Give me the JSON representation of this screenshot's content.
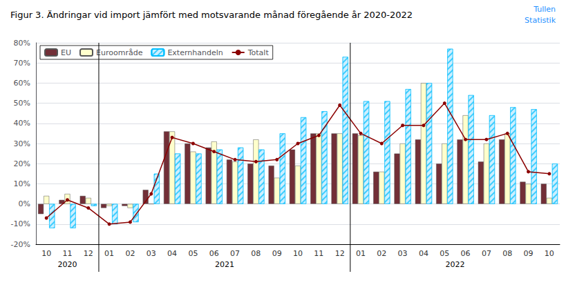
{
  "chart_data": {
    "type": "bar",
    "title": "Figur 3. Ändringar vid import jämfört med motsvarande månad föregående år 2020-2022",
    "categories": [
      "10",
      "11",
      "12",
      "01",
      "02",
      "03",
      "04",
      "05",
      "06",
      "07",
      "08",
      "09",
      "10",
      "11",
      "12",
      "01",
      "02",
      "03",
      "04",
      "05",
      "06",
      "07",
      "08",
      "09",
      "10"
    ],
    "series": [
      {
        "name": "EU",
        "type": "bar",
        "color": "#722F37",
        "values": [
          -5,
          2,
          4,
          -2,
          -1,
          7,
          36,
          30,
          28,
          22,
          20,
          19,
          27,
          35,
          35,
          35,
          16,
          25,
          32,
          20,
          32,
          21,
          32,
          11,
          10
        ]
      },
      {
        "name": "Euroområde",
        "type": "bar",
        "color": "#FFFFCC",
        "values": [
          4,
          5,
          3,
          -1,
          -2,
          0,
          36,
          26,
          31,
          21,
          32,
          13,
          19,
          35,
          35,
          34,
          16,
          30,
          60,
          30,
          44,
          30,
          35,
          10,
          3
        ]
      },
      {
        "name": "Externhandeln",
        "type": "bar",
        "color": "#CCEFFF",
        "values": [
          -12,
          -12,
          -1,
          -10,
          -9,
          15,
          25,
          25,
          27,
          28,
          27,
          35,
          43,
          46,
          73,
          51,
          51,
          57,
          60,
          77,
          54,
          44,
          48,
          47,
          20
        ]
      },
      {
        "name": "Totalt",
        "type": "line",
        "color": "#8B0000",
        "marker": "circle",
        "values": [
          -7,
          2,
          -2,
          -10,
          -9,
          5,
          33,
          30,
          26,
          22,
          21,
          22,
          30,
          34,
          49,
          35,
          30,
          39,
          39,
          50,
          32,
          32,
          35,
          16,
          15
        ]
      }
    ],
    "annotations": [
      {
        "text": "2020",
        "from": 0,
        "to": 2
      },
      {
        "text": "2021",
        "from": 3,
        "to": 14
      },
      {
        "text": "2022",
        "from": 15,
        "to": 24
      },
      {
        "text": "Tullen",
        "color": "#1E90FF"
      },
      {
        "text": "Statistik",
        "color": "#1E90FF"
      }
    ],
    "ylim": [
      -20,
      80
    ],
    "yticks": [
      {
        "value": -20,
        "label": "-20%"
      },
      {
        "value": -10,
        "label": "-10%"
      },
      {
        "value": 0,
        "label": "0%"
      },
      {
        "value": 10,
        "label": "10%"
      },
      {
        "value": 20,
        "label": "20%"
      },
      {
        "value": 30,
        "label": "30%"
      },
      {
        "value": 40,
        "label": "40%"
      },
      {
        "value": 50,
        "label": "50%"
      },
      {
        "value": 60,
        "label": "60%"
      },
      {
        "value": 70,
        "label": "70%"
      },
      {
        "value": 80,
        "label": "80%"
      }
    ],
    "grid": true,
    "legend": "upper left"
  }
}
